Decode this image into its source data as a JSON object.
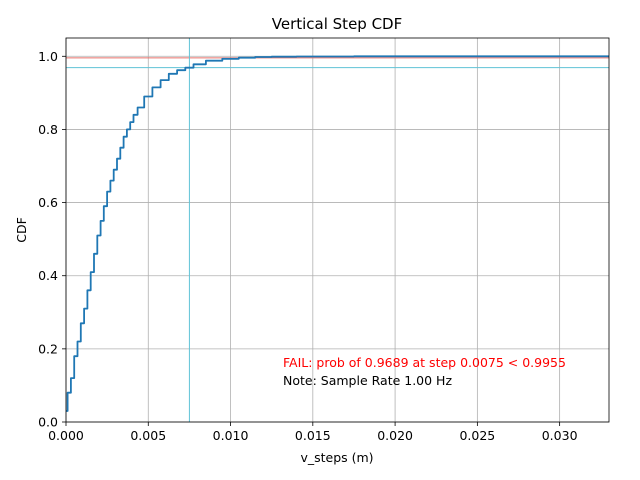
{
  "chart_data": {
    "type": "line",
    "title": "Vertical Step CDF",
    "xlabel": "v_steps (m)",
    "ylabel": "CDF",
    "xlim": [
      0,
      0.033
    ],
    "ylim": [
      0,
      1.05
    ],
    "grid": true,
    "x_ticks": [
      0.0,
      0.005,
      0.01,
      0.015,
      0.02,
      0.025,
      0.03
    ],
    "x_tick_labels": [
      "0.000",
      "0.005",
      "0.010",
      "0.015",
      "0.020",
      "0.025",
      "0.030"
    ],
    "y_ticks": [
      0.0,
      0.2,
      0.4,
      0.6,
      0.8,
      1.0
    ],
    "y_tick_labels": [
      "0.0",
      "0.2",
      "0.4",
      "0.6",
      "0.8",
      "1.0"
    ],
    "series": [
      {
        "color": "#1f77b4",
        "x": [
          0.0,
          0.0002,
          0.0004,
          0.0006,
          0.0008,
          0.001,
          0.0012,
          0.0014,
          0.0016,
          0.0018,
          0.002,
          0.0022,
          0.0024,
          0.0026,
          0.0028,
          0.003,
          0.0032,
          0.0034,
          0.0036,
          0.0038,
          0.004,
          0.0042,
          0.0045,
          0.005,
          0.0055,
          0.006,
          0.0065,
          0.007,
          0.0075,
          0.008,
          0.009,
          0.01,
          0.011,
          0.012,
          0.013,
          0.015,
          0.02,
          0.025,
          0.03,
          0.033
        ],
        "y": [
          0.03,
          0.08,
          0.12,
          0.18,
          0.22,
          0.27,
          0.31,
          0.36,
          0.41,
          0.46,
          0.51,
          0.55,
          0.59,
          0.63,
          0.66,
          0.69,
          0.72,
          0.75,
          0.78,
          0.8,
          0.82,
          0.84,
          0.86,
          0.89,
          0.915,
          0.935,
          0.952,
          0.962,
          0.9689,
          0.978,
          0.988,
          0.993,
          0.996,
          0.998,
          0.999,
          0.9995,
          1.0,
          1.0,
          1.0,
          1.0
        ]
      }
    ],
    "reference_lines": {
      "horizontal": [
        {
          "y": 0.9955,
          "color": "#e8706a"
        },
        {
          "y": 0.9689,
          "color": "#5fc3d6"
        }
      ],
      "vertical": [
        {
          "x": 0.0075,
          "color": "#5fc3d6"
        }
      ]
    },
    "annotations": [
      {
        "text": "FAIL: prob of 0.9689 at step 0.0075 < 0.9955",
        "color": "#ff0000"
      },
      {
        "text": "Note: Sample Rate 1.00 Hz",
        "color": "#000000"
      }
    ]
  }
}
